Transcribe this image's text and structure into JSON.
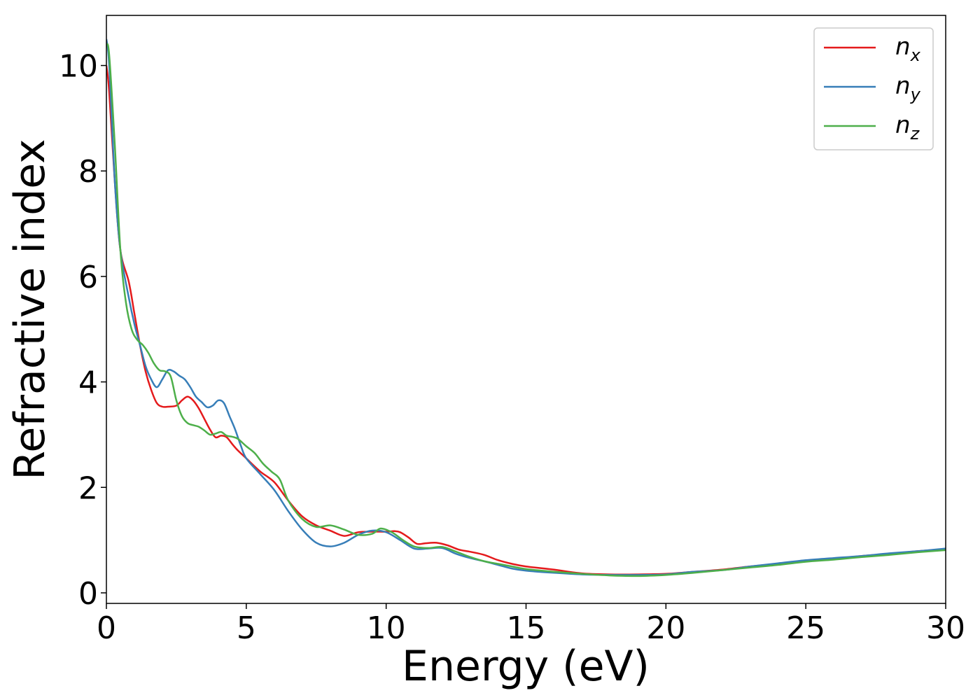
{
  "chart_data": {
    "type": "line",
    "title": "",
    "xlabel": "Energy (eV)",
    "ylabel": "Refractive index",
    "xlim": [
      0,
      30
    ],
    "ylim": [
      -0.2,
      10.95
    ],
    "xticks": [
      0,
      5,
      10,
      15,
      20,
      25,
      30
    ],
    "yticks": [
      0,
      2,
      4,
      6,
      8,
      10
    ],
    "grid": false,
    "legend_position": "top-right",
    "series": [
      {
        "name": "n_x",
        "label_base": "n",
        "label_sub": "x",
        "color": "#e41a1c",
        "x": [
          0,
          0.1,
          0.3,
          0.5,
          0.8,
          1.0,
          1.2,
          1.4,
          1.6,
          1.8,
          2.0,
          2.2,
          2.5,
          2.7,
          2.9,
          3.1,
          3.3,
          3.5,
          3.7,
          3.9,
          4.1,
          4.3,
          4.5,
          4.7,
          5.0,
          5.5,
          6.0,
          6.5,
          7.0,
          7.5,
          8.0,
          8.5,
          9.0,
          9.5,
          10.0,
          10.3,
          10.5,
          10.8,
          11.1,
          11.4,
          11.8,
          12.2,
          12.6,
          13.0,
          13.5,
          14.0,
          14.5,
          15.0,
          16.0,
          17.0,
          18.0,
          19.0,
          20.0,
          21.0,
          22.0,
          23.0,
          24.0,
          25.0,
          26.0,
          27.0,
          28.0,
          29.0,
          30.0
        ],
        "y": [
          10.0,
          9.5,
          7.8,
          6.5,
          5.9,
          5.3,
          4.7,
          4.2,
          3.85,
          3.6,
          3.53,
          3.53,
          3.55,
          3.65,
          3.72,
          3.65,
          3.5,
          3.3,
          3.1,
          2.95,
          2.98,
          2.95,
          2.82,
          2.7,
          2.55,
          2.3,
          2.1,
          1.75,
          1.45,
          1.28,
          1.18,
          1.08,
          1.15,
          1.16,
          1.16,
          1.17,
          1.15,
          1.05,
          0.93,
          0.94,
          0.95,
          0.9,
          0.82,
          0.78,
          0.72,
          0.62,
          0.55,
          0.5,
          0.44,
          0.37,
          0.35,
          0.35,
          0.36,
          0.4,
          0.44,
          0.5,
          0.55,
          0.6,
          0.64,
          0.7,
          0.74,
          0.79,
          0.83
        ]
      },
      {
        "name": "n_y",
        "label_base": "n",
        "label_sub": "y",
        "color": "#377eb8",
        "x": [
          0,
          0.1,
          0.3,
          0.5,
          0.8,
          1.0,
          1.2,
          1.4,
          1.6,
          1.8,
          2.0,
          2.2,
          2.4,
          2.6,
          2.8,
          3.0,
          3.2,
          3.4,
          3.6,
          3.8,
          4.0,
          4.2,
          4.4,
          4.6,
          4.8,
          5.0,
          5.5,
          6.0,
          6.5,
          7.0,
          7.5,
          8.0,
          8.5,
          9.0,
          9.5,
          10.0,
          10.5,
          11.0,
          11.5,
          12.0,
          12.5,
          13.0,
          13.5,
          14.0,
          14.5,
          15.0,
          16.0,
          17.0,
          18.0,
          19.0,
          20.0,
          21.0,
          22.0,
          23.0,
          24.0,
          25.0,
          26.0,
          27.0,
          28.0,
          29.0,
          30.0
        ],
        "y": [
          10.5,
          10.0,
          7.8,
          6.5,
          5.6,
          5.1,
          4.7,
          4.3,
          4.05,
          3.9,
          4.05,
          4.22,
          4.2,
          4.12,
          4.05,
          3.9,
          3.72,
          3.62,
          3.52,
          3.55,
          3.65,
          3.6,
          3.35,
          3.1,
          2.8,
          2.55,
          2.25,
          1.95,
          1.55,
          1.2,
          0.95,
          0.88,
          0.95,
          1.1,
          1.18,
          1.15,
          1.0,
          0.84,
          0.84,
          0.85,
          0.74,
          0.66,
          0.6,
          0.53,
          0.46,
          0.42,
          0.38,
          0.35,
          0.34,
          0.34,
          0.35,
          0.4,
          0.43,
          0.5,
          0.56,
          0.62,
          0.66,
          0.7,
          0.75,
          0.79,
          0.84
        ]
      },
      {
        "name": "n_z",
        "label_base": "n",
        "label_sub": "z",
        "color": "#4daf4a",
        "x": [
          0,
          0.1,
          0.3,
          0.5,
          0.7,
          0.9,
          1.1,
          1.3,
          1.5,
          1.7,
          1.9,
          2.1,
          2.3,
          2.5,
          2.7,
          2.9,
          3.1,
          3.3,
          3.5,
          3.7,
          3.9,
          4.1,
          4.3,
          4.5,
          4.7,
          5.0,
          5.3,
          5.6,
          5.9,
          6.2,
          6.5,
          7.0,
          7.5,
          8.0,
          8.5,
          9.0,
          9.5,
          9.8,
          10.2,
          10.6,
          11.0,
          11.5,
          12.0,
          12.5,
          13.0,
          13.5,
          14.0,
          14.5,
          15.0,
          16.0,
          17.0,
          18.0,
          19.0,
          20.0,
          21.0,
          22.0,
          23.0,
          24.0,
          25.0,
          26.0,
          27.0,
          28.0,
          29.0,
          30.0
        ],
        "y": [
          10.4,
          10.2,
          8.5,
          6.5,
          5.5,
          5.0,
          4.8,
          4.7,
          4.55,
          4.35,
          4.22,
          4.2,
          4.1,
          3.65,
          3.35,
          3.22,
          3.18,
          3.15,
          3.08,
          3.0,
          3.02,
          3.05,
          2.98,
          2.96,
          2.92,
          2.78,
          2.65,
          2.45,
          2.3,
          2.15,
          1.75,
          1.4,
          1.25,
          1.28,
          1.2,
          1.1,
          1.12,
          1.22,
          1.15,
          1.0,
          0.88,
          0.85,
          0.87,
          0.78,
          0.68,
          0.6,
          0.55,
          0.5,
          0.45,
          0.4,
          0.36,
          0.33,
          0.32,
          0.34,
          0.38,
          0.43,
          0.48,
          0.53,
          0.59,
          0.63,
          0.68,
          0.72,
          0.77,
          0.81
        ]
      }
    ]
  }
}
